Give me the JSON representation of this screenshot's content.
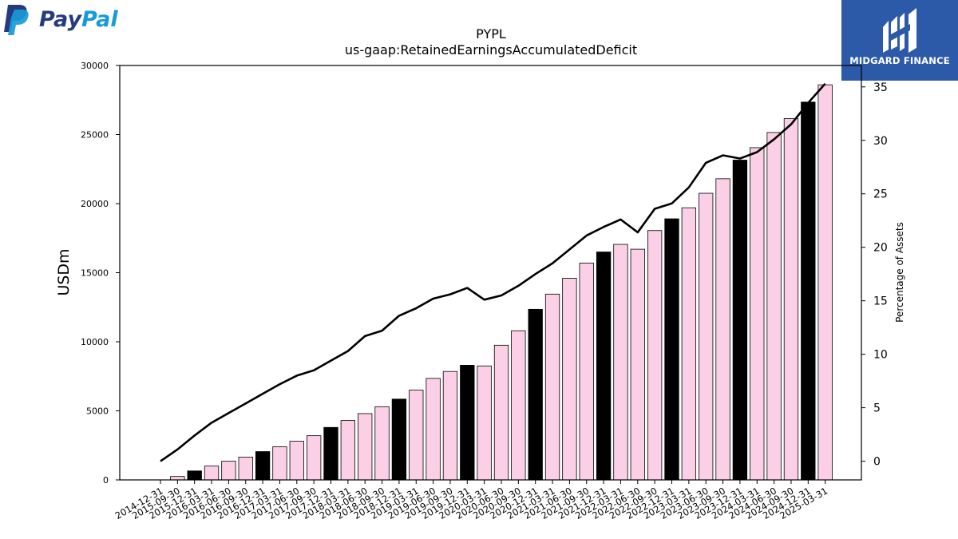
{
  "branding": {
    "left_logo_text_part1": "Pay",
    "left_logo_text_part2": "Pal",
    "right_logo_text": "MIDGARD FINANCE",
    "left_logo_icon": "paypal-p-icon",
    "right_logo_icon": "midgard-m-icon",
    "colors": {
      "paypal_dark": "#253b80",
      "paypal_light": "#179bd7",
      "midgard_bg": "#2d5aa8"
    }
  },
  "chart_data": {
    "type": "bar",
    "title": "PYPL",
    "subtitle": "us-gaap:RetainedEarningsAccumulatedDeficit",
    "ylabel": "USDm",
    "y2label": "Percentage of Assets",
    "ylim": [
      0,
      30000
    ],
    "y2lim": [
      -1.75,
      37
    ],
    "yticks": [
      0,
      5000,
      10000,
      15000,
      20000,
      25000,
      30000
    ],
    "y2ticks": [
      0,
      5,
      10,
      15,
      20,
      25,
      30,
      35
    ],
    "categories": [
      "2014-12-31",
      "2015-09-30",
      "2015-12-31",
      "2016-03-31",
      "2016-06-30",
      "2016-09-30",
      "2016-12-31",
      "2017-03-31",
      "2017-06-30",
      "2017-09-30",
      "2017-12-31",
      "2018-03-31",
      "2018-06-30",
      "2018-09-30",
      "2018-12-31",
      "2019-03-31",
      "2019-06-30",
      "2019-09-30",
      "2019-12-31",
      "2020-03-31",
      "2020-06-30",
      "2020-09-30",
      "2020-12-31",
      "2021-03-31",
      "2021-06-30",
      "2021-09-30",
      "2021-12-31",
      "2022-03-31",
      "2022-06-30",
      "2022-09-30",
      "2022-12-31",
      "2023-03-31",
      "2023-06-30",
      "2023-09-30",
      "2023-12-31",
      "2024-03-31",
      "2024-06-30",
      "2024-09-30",
      "2024-12-31",
      "2025-03-31"
    ],
    "series": [
      {
        "kind": "bar",
        "values": [
          0,
          250,
          650,
          1000,
          1350,
          1650,
          2050,
          2400,
          2800,
          3200,
          3800,
          4300,
          4800,
          5300,
          5850,
          6500,
          7350,
          7850,
          8300,
          8250,
          9750,
          10800,
          12350,
          13450,
          14600,
          15700,
          16500,
          17050,
          16700,
          18050,
          18900,
          19700,
          20750,
          21800,
          23150,
          24050,
          25150,
          26150,
          27350,
          28600
        ],
        "year_end_color": "#000000",
        "quarter_color": "#fbcfe6"
      },
      {
        "kind": "line",
        "values": [
          0,
          1.1,
          2.4,
          3.6,
          4.5,
          5.4,
          6.3,
          7.2,
          8.0,
          8.5,
          9.4,
          10.3,
          11.7,
          12.2,
          13.6,
          14.3,
          15.2,
          15.6,
          16.2,
          15.1,
          15.5,
          16.4,
          17.5,
          18.5,
          19.8,
          21.1,
          21.9,
          22.6,
          21.4,
          23.6,
          24.1,
          25.6,
          27.9,
          28.6,
          28.3,
          28.9,
          30.1,
          31.5,
          33.5,
          35.3
        ],
        "color": "#000000"
      }
    ]
  }
}
